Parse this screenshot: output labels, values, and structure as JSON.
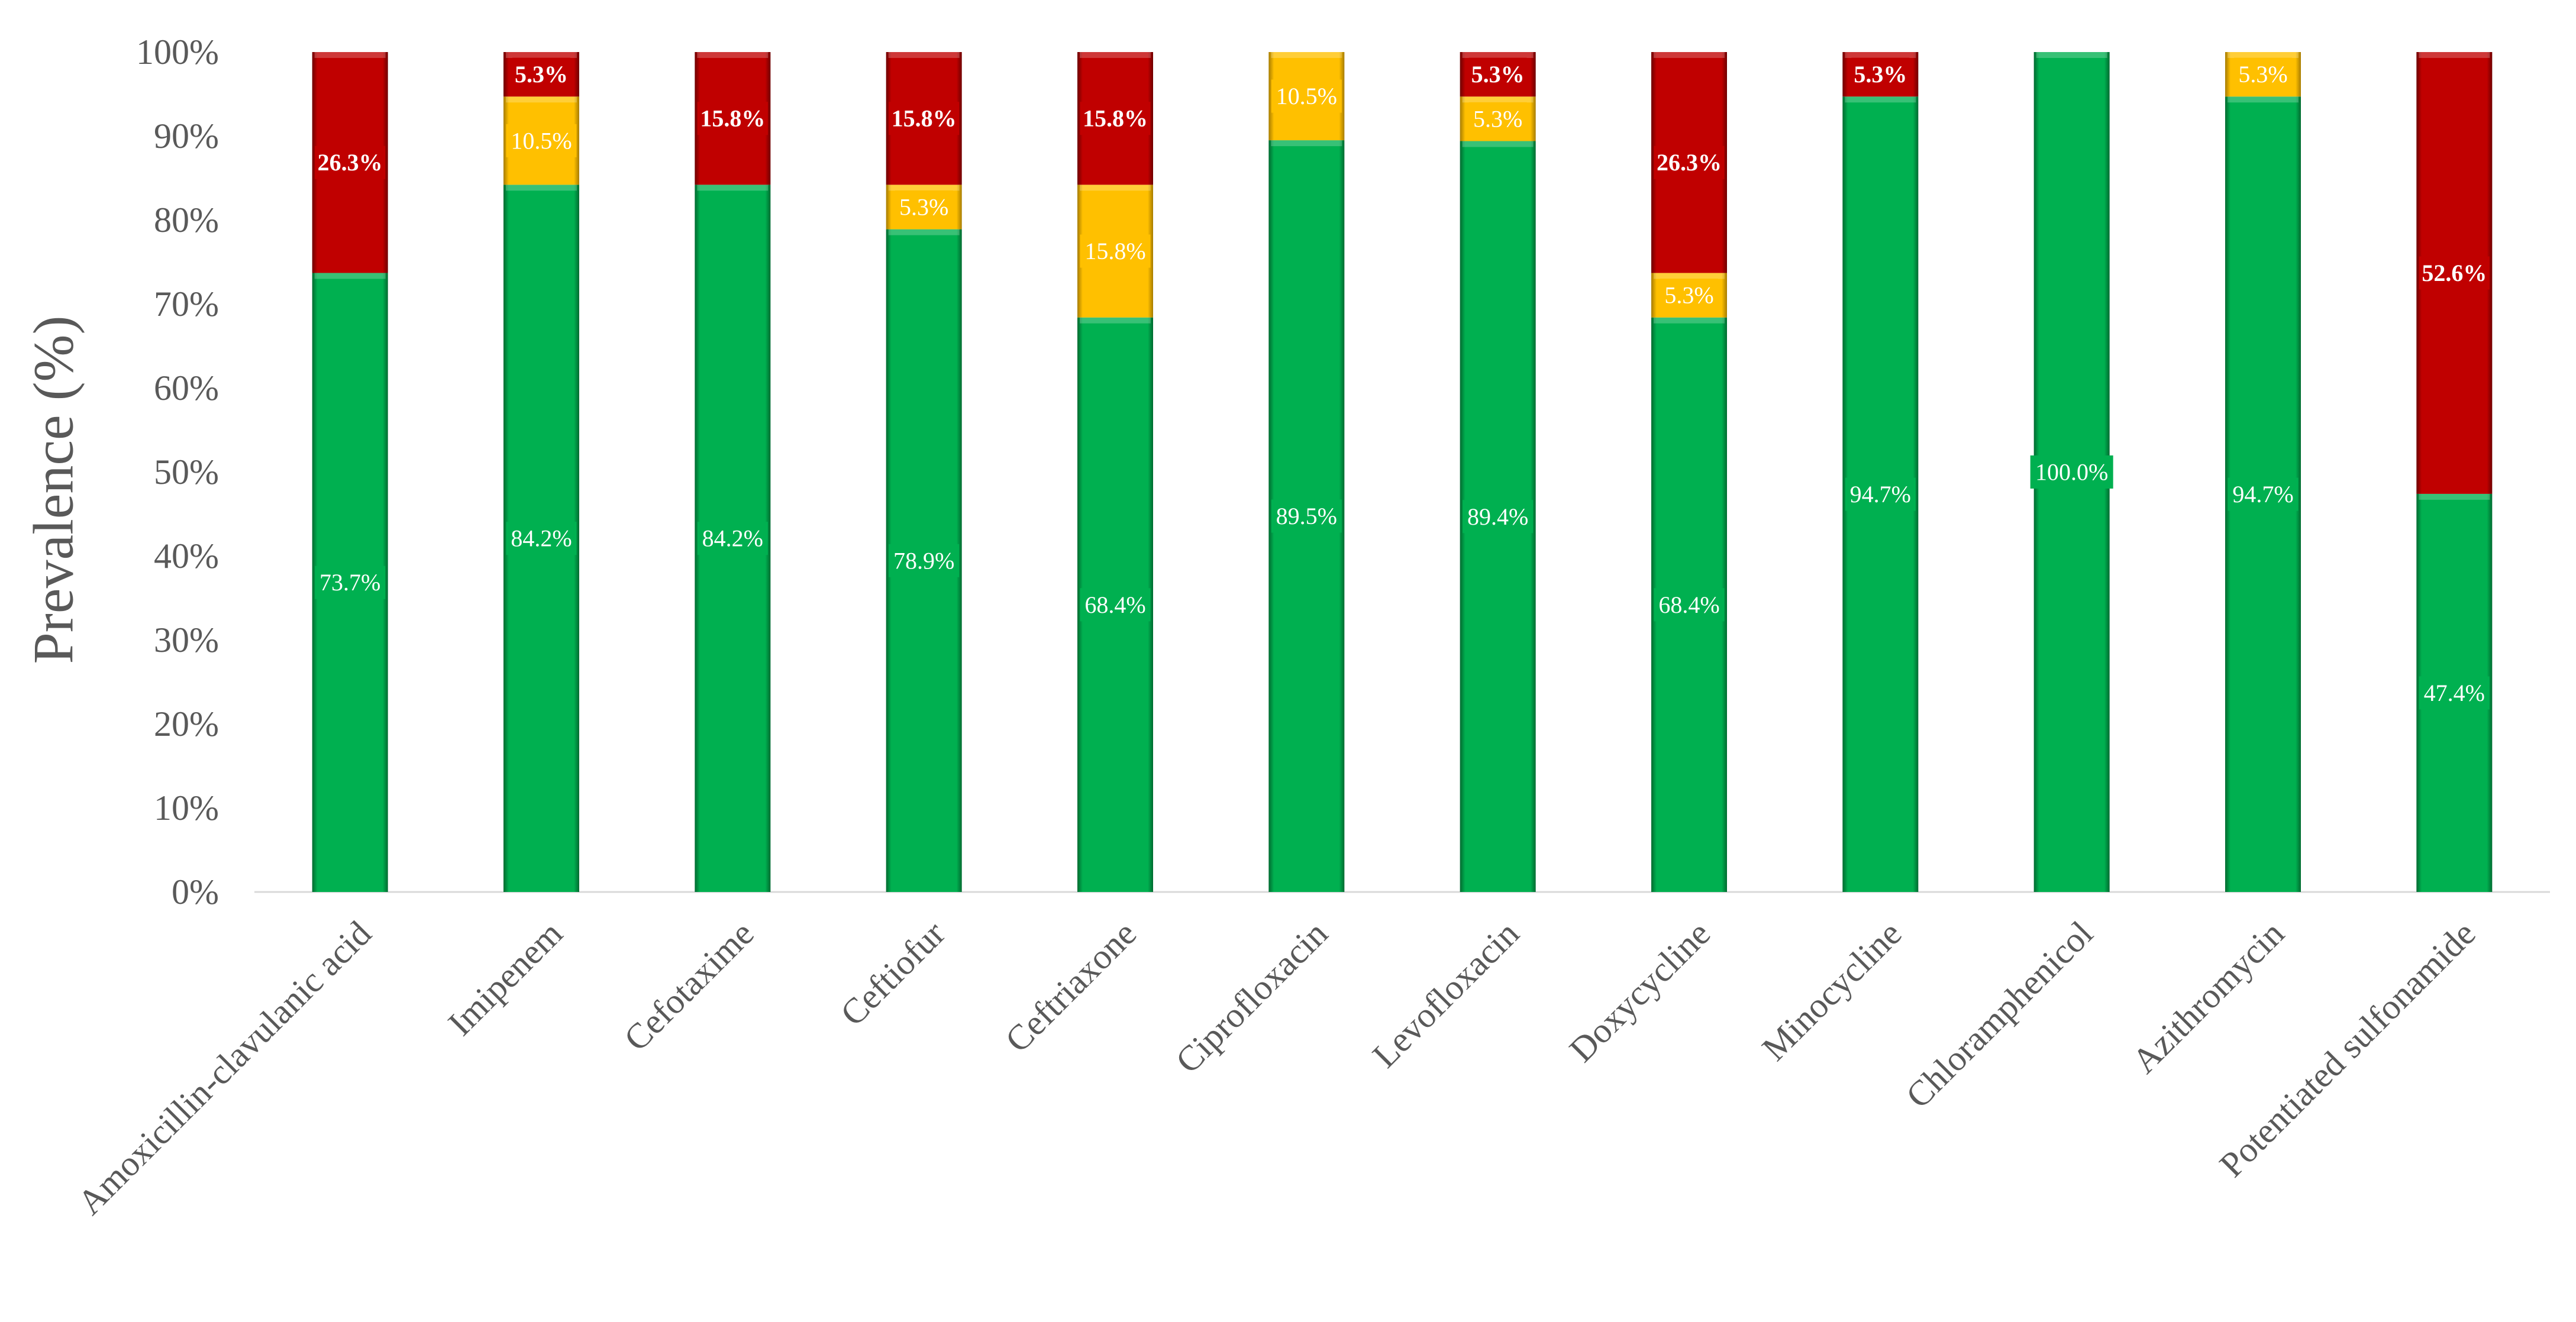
{
  "chart_data": {
    "type": "bar",
    "stacked": true,
    "title": "",
    "xlabel": "",
    "ylabel": "Prevalence (%)",
    "ylim": [
      0,
      100
    ],
    "yticks": [
      "0%",
      "10%",
      "20%",
      "30%",
      "40%",
      "50%",
      "60%",
      "70%",
      "80%",
      "90%",
      "100%"
    ],
    "grid": false,
    "legend": "none",
    "categories": [
      "Amoxicillin-clavulanic acid",
      "Imipenem",
      "Cefotaxime",
      "Ceftiofur",
      "Ceftriaxone",
      "Ciprofloxacin",
      "Levofloxacin",
      "Doxycycline",
      "Minocycline",
      "Chloramphenicol",
      "Azithromycin",
      "Potentiated sulfonamide"
    ],
    "series": [
      {
        "name": "green",
        "color": "#00b050",
        "label_color": "#ffffff",
        "values": [
          73.7,
          84.2,
          84.2,
          78.9,
          68.4,
          89.5,
          89.4,
          68.4,
          94.7,
          100.0,
          94.7,
          47.4
        ],
        "labels": [
          "73.7%",
          "84.2%",
          "84.2%",
          "78.9%",
          "68.4%",
          "89.5%",
          "89.4%",
          "68.4%",
          "94.7%",
          "100.0%",
          "94.7%",
          "47.4%"
        ]
      },
      {
        "name": "yellow",
        "color": "#ffc000",
        "label_color": "#ffffff",
        "values": [
          0,
          10.5,
          0,
          5.3,
          15.8,
          10.5,
          5.3,
          5.3,
          0,
          0,
          5.3,
          0
        ],
        "labels": [
          "",
          "10.5%",
          "",
          "5.3%",
          "15.8%",
          "10.5%",
          "5.3%",
          "5.3%",
          "",
          "",
          "5.3%",
          ""
        ]
      },
      {
        "name": "red",
        "color": "#c00000",
        "label_color": "#ffffff",
        "values": [
          26.3,
          5.3,
          15.8,
          15.8,
          15.8,
          0,
          5.3,
          26.3,
          5.3,
          0,
          0,
          52.6
        ],
        "labels": [
          "26.3%",
          "5.3%",
          "15.8%",
          "15.8%",
          "15.8%",
          "",
          "5.3%",
          "26.3%",
          "5.3%",
          "",
          "",
          "52.6%"
        ]
      }
    ]
  }
}
